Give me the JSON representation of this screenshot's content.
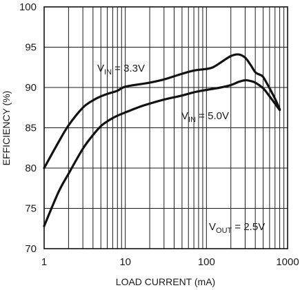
{
  "chart_data": {
    "type": "line",
    "xlabel": "LOAD CURRENT (mA)",
    "ylabel": "EFFICIENCY (%)",
    "x_scale": "log",
    "xlim": [
      1,
      1000
    ],
    "ylim": [
      70,
      100
    ],
    "grid": true,
    "x_tick_labels": [
      "1",
      "10",
      "100",
      "1000"
    ],
    "y_tick_labels": [
      "70",
      "75",
      "80",
      "85",
      "90",
      "95",
      "100"
    ],
    "x_ticks": [
      1,
      10,
      100,
      1000
    ],
    "y_ticks": [
      70,
      75,
      80,
      85,
      90,
      95,
      100
    ],
    "series": [
      {
        "label_main": "V",
        "label_sub": "IN",
        "label_rest": " = 3.3V",
        "x": [
          1,
          1.5,
          2,
          3,
          4,
          5,
          6,
          7,
          8,
          10,
          15,
          20,
          30,
          50,
          70,
          100,
          120,
          150,
          200,
          250,
          300,
          350,
          400,
          450,
          500,
          600,
          700,
          800
        ],
        "y": [
          80,
          83.2,
          85.3,
          87.5,
          88.4,
          88.9,
          89.2,
          89.4,
          89.6,
          90.1,
          90.4,
          90.6,
          91.0,
          91.7,
          92.1,
          92.3,
          92.5,
          93.1,
          93.9,
          94.1,
          93.7,
          92.8,
          91.9,
          91.6,
          91.3,
          89.9,
          88.6,
          87.3
        ]
      },
      {
        "label_main": "V",
        "label_sub": "IN",
        "label_rest": " = 5.0V",
        "x": [
          1,
          1.5,
          2,
          3,
          4,
          5,
          6,
          7,
          8,
          10,
          15,
          20,
          30,
          50,
          70,
          100,
          150,
          200,
          250,
          300,
          350,
          400,
          500,
          600,
          700,
          800
        ],
        "y": [
          72.8,
          77.0,
          79.3,
          82.4,
          84.1,
          85.2,
          85.8,
          86.2,
          86.5,
          86.9,
          87.6,
          88.0,
          88.5,
          89.0,
          89.4,
          89.7,
          90.0,
          90.3,
          90.7,
          90.9,
          90.8,
          90.6,
          89.9,
          88.9,
          88.0,
          87.2
        ]
      }
    ],
    "annotations": [
      {
        "main": "V",
        "sub": "OUT",
        "rest": " = 2.5V"
      }
    ]
  }
}
